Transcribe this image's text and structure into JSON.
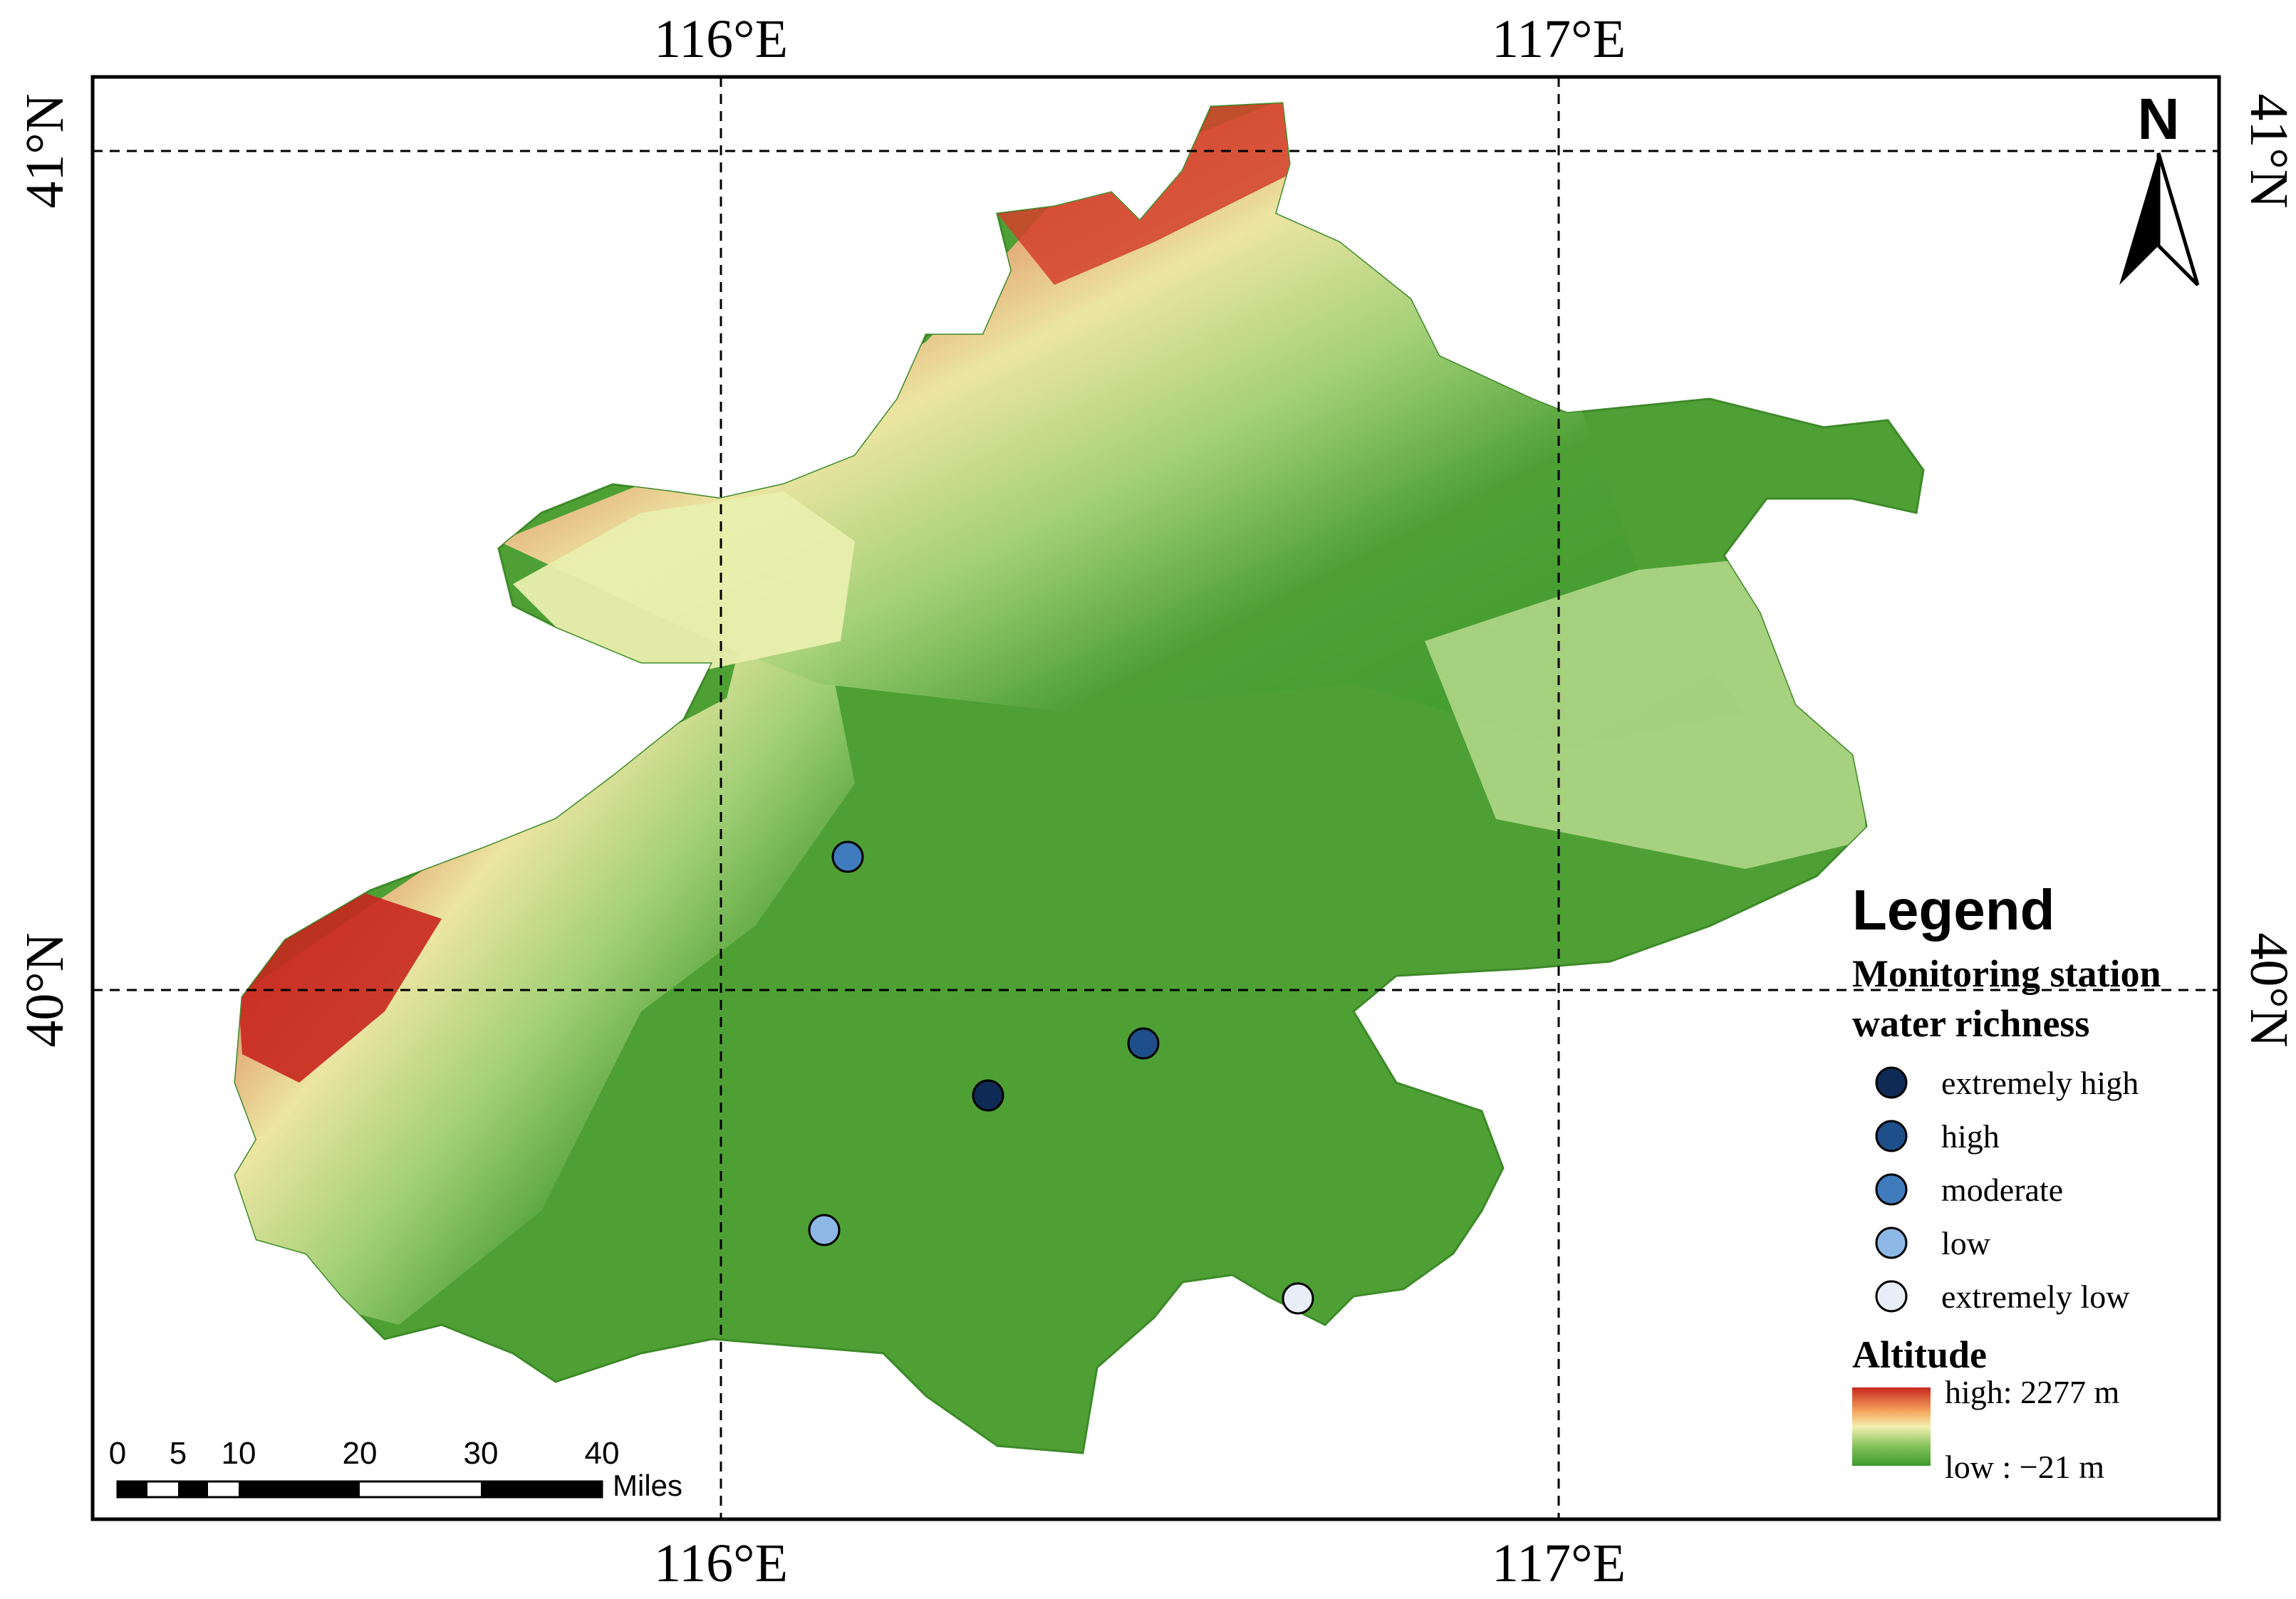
{
  "graticule": {
    "top_labels": [
      "116°E",
      "117°E"
    ],
    "bottom_labels": [
      "116°E",
      "117°E"
    ],
    "left_labels": [
      "41°N",
      "40°N"
    ],
    "right_labels": [
      "41°N",
      "40°N"
    ]
  },
  "north_arrow": {
    "label": "N",
    "icon": "north-arrow-icon"
  },
  "legend": {
    "title": "Legend",
    "station_title_line1": "Monitoring station",
    "station_title_line2": "water richness",
    "stations": [
      {
        "label": "extremely high",
        "color": "#0f2b55"
      },
      {
        "label": "high",
        "color": "#1f4f8a"
      },
      {
        "label": "moderate",
        "color": "#3f7bbd"
      },
      {
        "label": "low",
        "color": "#8db8e6"
      },
      {
        "label": "extremely low",
        "color": "#e8eef7"
      }
    ],
    "altitude_title": "Altitude",
    "altitude_high": "high: 2277 m",
    "altitude_low": "low : −21 m",
    "ramp_colors": [
      "#c8261e",
      "#f4a45c",
      "#f4f0b0",
      "#86c25c",
      "#3d9a2b"
    ]
  },
  "stations_on_map": [
    {
      "level": "moderate"
    },
    {
      "level": "high"
    },
    {
      "level": "extremely high"
    },
    {
      "level": "low"
    },
    {
      "level": "extremely low"
    }
  ],
  "scale_bar": {
    "ticks": [
      "0",
      "5",
      "10",
      "20",
      "30",
      "40"
    ],
    "unit": "Miles"
  }
}
